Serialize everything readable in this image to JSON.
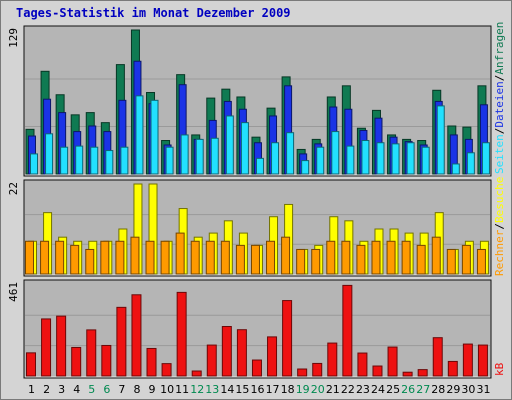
{
  "title": "Tages-Statistik im Monat Dezember 2009",
  "colors": {
    "background": "#d4d4d4",
    "panel": "#b5b5b5",
    "requests": "#0f7a52",
    "files": "#1a33e6",
    "pages": "#22e0ff",
    "visits": "#ffff00",
    "sites": "#ff9a00",
    "kbytes": "#ee1111",
    "title_color": "#0000c0",
    "weekend_color": "#008a50"
  },
  "chart_data": [
    {
      "type": "bar",
      "panel": "hits",
      "ymax_label": "129",
      "ylim": [
        0,
        129
      ],
      "legend": [
        {
          "label": "Anfragen",
          "color": "#0f7a52"
        },
        {
          "label": "Dateien",
          "color": "#1a33e6"
        },
        {
          "label": "Seiten",
          "color": "#22e0ff"
        }
      ],
      "categories": [
        "1",
        "2",
        "3",
        "4",
        "5",
        "6",
        "7",
        "8",
        "9",
        "10",
        "11",
        "12",
        "13",
        "14",
        "15",
        "16",
        "17",
        "18",
        "19",
        "20",
        "21",
        "22",
        "23",
        "24",
        "25",
        "26",
        "27",
        "28",
        "29",
        "30",
        "31"
      ],
      "weekend_days": [
        "5",
        "6",
        "12",
        "13",
        "19",
        "20",
        "26",
        "27"
      ],
      "series": [
        {
          "name": "Anfragen",
          "values": [
            40,
            92,
            71,
            53,
            55,
            46,
            98,
            129,
            73,
            30,
            89,
            35,
            68,
            76,
            69,
            33,
            59,
            87,
            22,
            31,
            69,
            79,
            41,
            57,
            35,
            31,
            30,
            75,
            43,
            42,
            79
          ]
        },
        {
          "name": "Dateien",
          "values": [
            34,
            67,
            55,
            38,
            43,
            38,
            66,
            101,
            63,
            26,
            80,
            31,
            48,
            65,
            58,
            28,
            52,
            79,
            18,
            27,
            60,
            58,
            39,
            50,
            33,
            29,
            26,
            65,
            35,
            31,
            62
          ]
        },
        {
          "name": "Seiten",
          "values": [
            18,
            36,
            24,
            25,
            24,
            21,
            24,
            70,
            66,
            24,
            35,
            31,
            32,
            52,
            46,
            14,
            28,
            37,
            12,
            24,
            38,
            25,
            30,
            28,
            27,
            28,
            24,
            61,
            9,
            19,
            28
          ]
        }
      ]
    },
    {
      "type": "bar",
      "panel": "visits",
      "ymax_label": "22",
      "ylim": [
        0,
        22
      ],
      "legend": [
        {
          "label": "Besuche",
          "color": "#ffff00"
        },
        {
          "label": "Rechner",
          "color": "#ff9a00"
        }
      ],
      "categories": [
        "1",
        "2",
        "3",
        "4",
        "5",
        "6",
        "7",
        "8",
        "9",
        "10",
        "11",
        "12",
        "13",
        "14",
        "15",
        "16",
        "17",
        "18",
        "19",
        "20",
        "21",
        "22",
        "23",
        "24",
        "25",
        "26",
        "27",
        "28",
        "29",
        "30",
        "31"
      ],
      "series": [
        {
          "name": "Besuche",
          "values": [
            8,
            15,
            9,
            8,
            8,
            8,
            11,
            22,
            22,
            8,
            16,
            9,
            10,
            13,
            10,
            7,
            14,
            17,
            6,
            7,
            14,
            13,
            8,
            11,
            11,
            10,
            10,
            15,
            6,
            8,
            8
          ]
        },
        {
          "name": "Rechner",
          "values": [
            8,
            8,
            8,
            7,
            6,
            8,
            8,
            9,
            8,
            8,
            10,
            8,
            8,
            8,
            7,
            7,
            8,
            9,
            6,
            6,
            8,
            8,
            7,
            8,
            8,
            8,
            7,
            9,
            6,
            7,
            6
          ]
        }
      ]
    },
    {
      "type": "bar",
      "panel": "kbytes",
      "ymax_label": "461",
      "ylim": [
        0,
        461
      ],
      "legend": [
        {
          "label": "kB",
          "color": "#ee1111"
        }
      ],
      "categories": [
        "1",
        "2",
        "3",
        "4",
        "5",
        "6",
        "7",
        "8",
        "9",
        "10",
        "11",
        "12",
        "13",
        "14",
        "15",
        "16",
        "17",
        "18",
        "19",
        "20",
        "21",
        "22",
        "23",
        "24",
        "25",
        "26",
        "27",
        "28",
        "29",
        "30",
        "31"
      ],
      "series": [
        {
          "name": "kB",
          "values": [
            116,
            286,
            300,
            143,
            231,
            153,
            344,
            407,
            138,
            62,
            419,
            25,
            155,
            248,
            232,
            80,
            196,
            378,
            35,
            63,
            165,
            454,
            115,
            50,
            145,
            19,
            32,
            192,
            73,
            160,
            155
          ]
        }
      ]
    }
  ]
}
